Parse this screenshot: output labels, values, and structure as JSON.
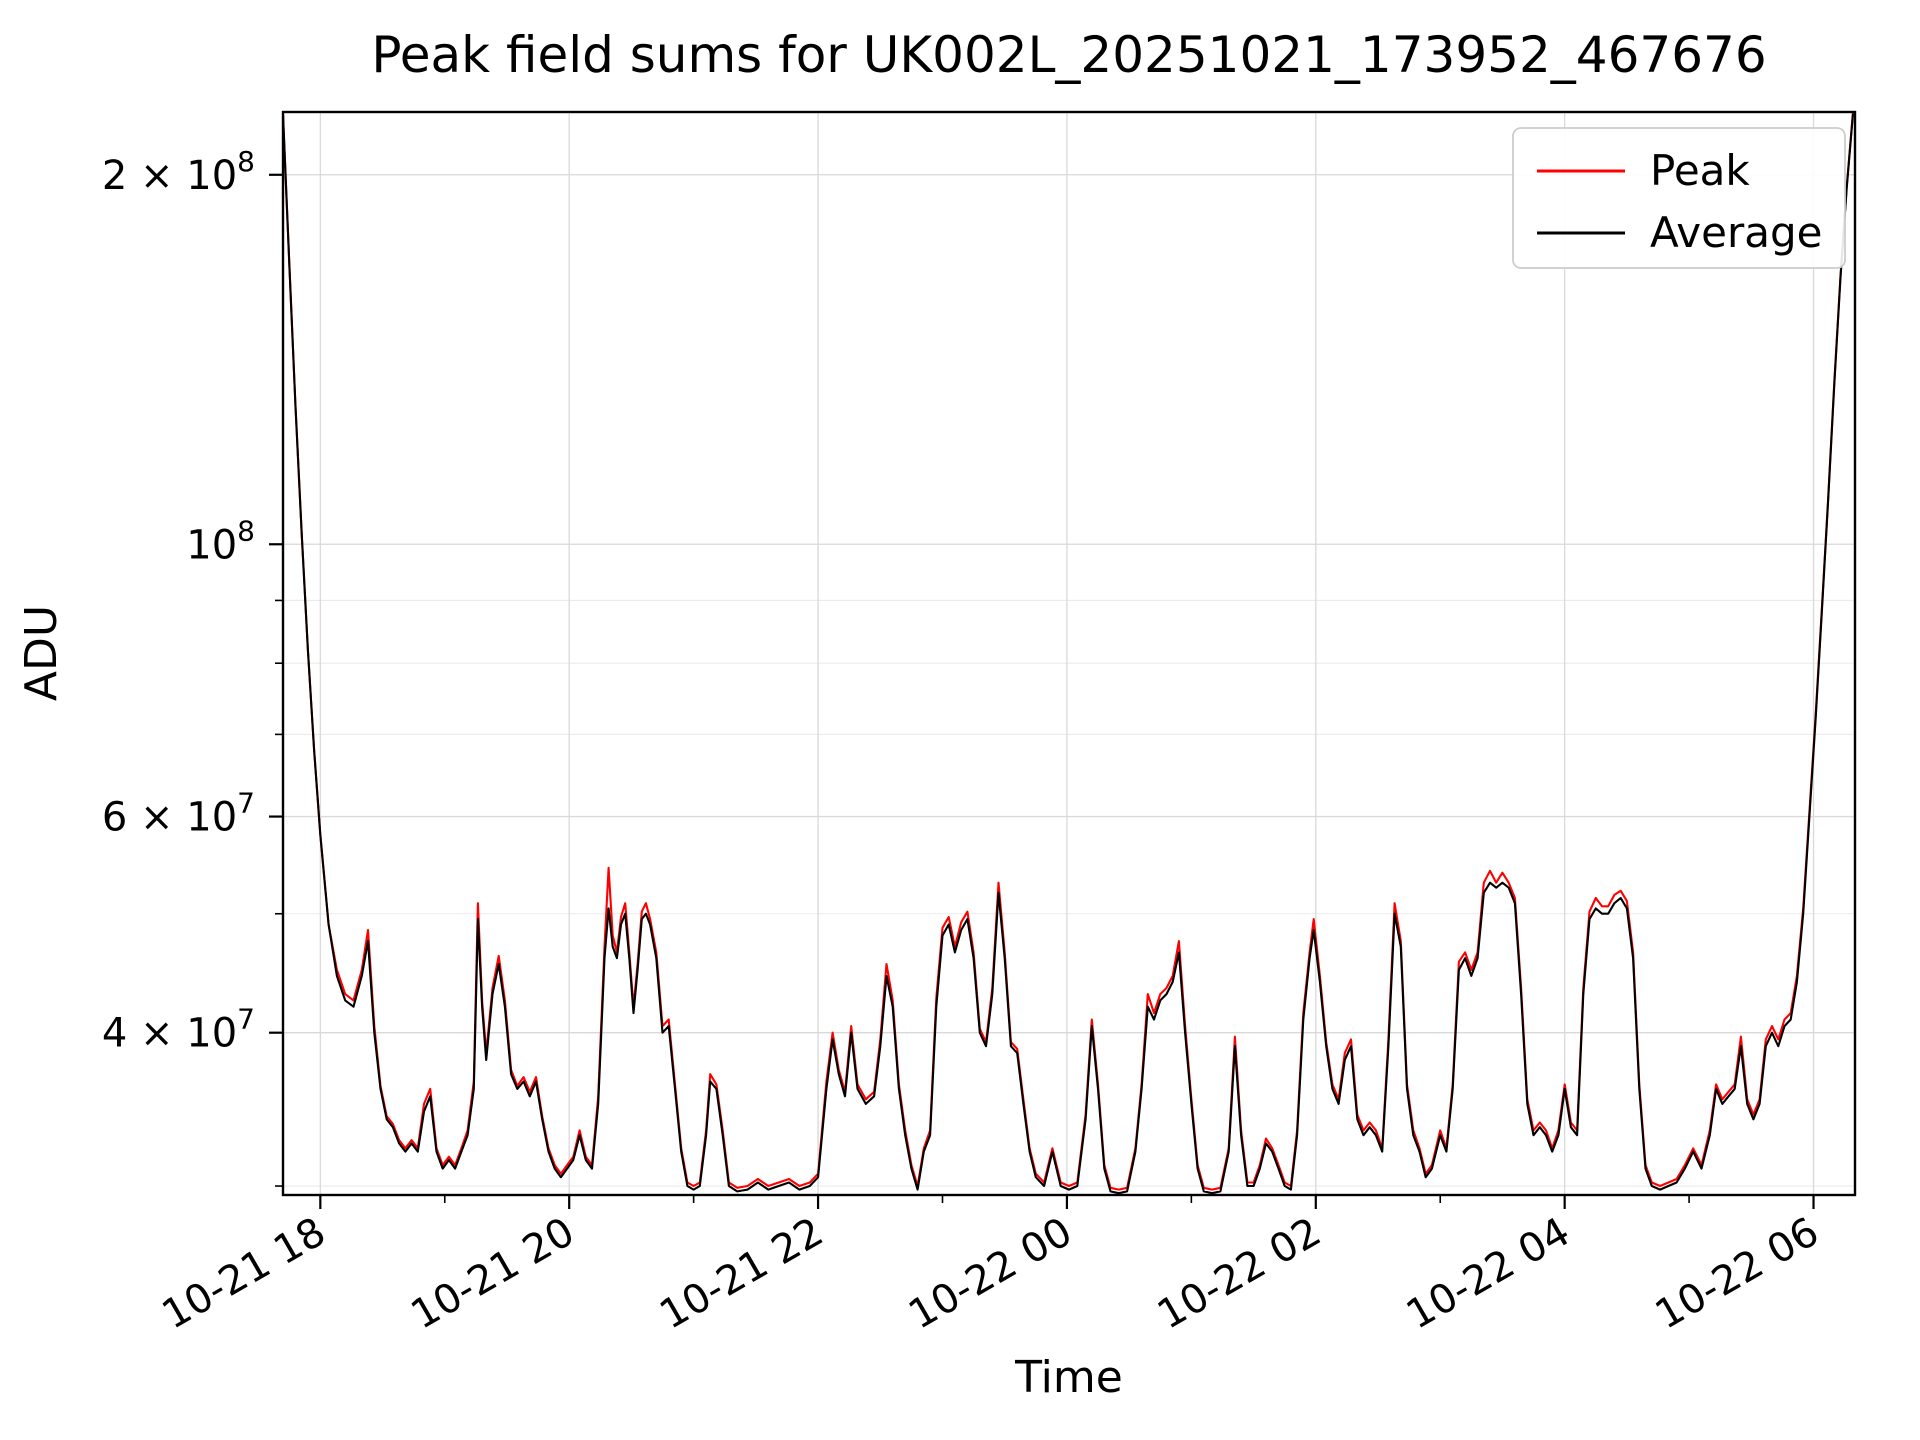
{
  "legend": {
    "items": [
      {
        "label": "Peak",
        "color": "#ff0000"
      },
      {
        "label": "Average",
        "color": "#000000"
      }
    ]
  },
  "chart_data": {
    "type": "line",
    "title": "Peak field sums for UK002L_20251021_173952_467676",
    "xlabel": "Time",
    "ylabel": "ADU",
    "y_scale": "log",
    "grid": true,
    "legend_position": "upper right",
    "value_unit": "ADU",
    "value_scale": 10000000,
    "ylim_scaled": [
      2.95,
      22.5
    ],
    "x_range_minutes": [
      2,
      760
    ],
    "x_ticks": [
      {
        "minute": 20,
        "label": "10-21 18"
      },
      {
        "minute": 140,
        "label": "10-21 20"
      },
      {
        "minute": 260,
        "label": "10-21 22"
      },
      {
        "minute": 380,
        "label": "10-22 00"
      },
      {
        "minute": 500,
        "label": "10-22 02"
      },
      {
        "minute": 620,
        "label": "10-22 04"
      },
      {
        "minute": 740,
        "label": "10-22 06"
      }
    ],
    "x_minor_minutes": [
      80,
      200,
      320,
      440,
      560,
      680
    ],
    "y_ticks_major": [
      {
        "value": 20,
        "mantissa": "2 × 10",
        "exponent": "8"
      },
      {
        "value": 10,
        "mantissa": "10",
        "exponent": "8"
      },
      {
        "value": 6,
        "mantissa": "6 × 10",
        "exponent": "7"
      },
      {
        "value": 4,
        "mantissa": "4 × 10",
        "exponent": "7"
      }
    ],
    "y_ticks_minor": [
      3,
      5,
      7,
      8,
      9
    ],
    "x_minutes": [
      2,
      5,
      8,
      11,
      14,
      17,
      20,
      24,
      28,
      32,
      36,
      40,
      43,
      46,
      49,
      52,
      55,
      58,
      61,
      64,
      67,
      70,
      73,
      76,
      79,
      82,
      85,
      88,
      91,
      94,
      96,
      98,
      100,
      103,
      106,
      109,
      112,
      115,
      118,
      121,
      124,
      127,
      130,
      133,
      136,
      139,
      142,
      145,
      148,
      151,
      154,
      157,
      159,
      161,
      163,
      165,
      167,
      169,
      171,
      173,
      175,
      177,
      179,
      182,
      185,
      188,
      191,
      194,
      197,
      200,
      203,
      206,
      208,
      211,
      214,
      217,
      221,
      226,
      231,
      236,
      241,
      246,
      251,
      256,
      260,
      264,
      267,
      270,
      273,
      276,
      279,
      283,
      287,
      290,
      293,
      296,
      299,
      302,
      305,
      308,
      311,
      314,
      317,
      320,
      323,
      326,
      329,
      332,
      335,
      338,
      341,
      344,
      347,
      350,
      353,
      356,
      359,
      362,
      365,
      369,
      373,
      377,
      381,
      385,
      389,
      392,
      395,
      398,
      401,
      405,
      409,
      413,
      416,
      419,
      422,
      425,
      428,
      431,
      434,
      437,
      440,
      443,
      446,
      450,
      454,
      458,
      461,
      464,
      467,
      470,
      473,
      476,
      479,
      482,
      485,
      488,
      491,
      494,
      497,
      499,
      502,
      505,
      508,
      511,
      514,
      517,
      520,
      523,
      526,
      529,
      532,
      535,
      538,
      541,
      544,
      547,
      550,
      553,
      556,
      560,
      563,
      566,
      569,
      572,
      575,
      578,
      581,
      584,
      587,
      590,
      593,
      596,
      599,
      602,
      605,
      608,
      611,
      614,
      617,
      620,
      623,
      626,
      629,
      632,
      635,
      638,
      641,
      644,
      647,
      650,
      653,
      656,
      659,
      662,
      666,
      670,
      674,
      678,
      682,
      686,
      690,
      693,
      696,
      699,
      702,
      705,
      708,
      711,
      714,
      717,
      720,
      723,
      726,
      729,
      732,
      735,
      738,
      741,
      744,
      747,
      750,
      753,
      756,
      759
    ],
    "series": [
      {
        "name": "Peak",
        "color": "#ff0000",
        "values": [
          22.4,
          17.0,
          13.0,
          10.2,
          8.2,
          6.8,
          5.8,
          4.9,
          4.5,
          4.3,
          4.25,
          4.5,
          4.85,
          4.05,
          3.62,
          3.42,
          3.37,
          3.27,
          3.22,
          3.27,
          3.22,
          3.5,
          3.6,
          3.22,
          3.12,
          3.17,
          3.12,
          3.22,
          3.33,
          3.65,
          5.1,
          4.25,
          3.85,
          4.35,
          4.62,
          4.25,
          3.73,
          3.62,
          3.68,
          3.58,
          3.68,
          3.42,
          3.22,
          3.12,
          3.07,
          3.12,
          3.17,
          3.33,
          3.17,
          3.12,
          3.55,
          4.7,
          5.45,
          4.8,
          4.65,
          4.97,
          5.1,
          4.65,
          4.2,
          4.55,
          5.02,
          5.1,
          4.95,
          4.65,
          4.05,
          4.1,
          3.63,
          3.22,
          3.02,
          3.0,
          3.02,
          3.33,
          3.7,
          3.63,
          3.33,
          3.02,
          2.99,
          3.0,
          3.04,
          3.0,
          3.02,
          3.04,
          3.0,
          3.02,
          3.07,
          3.65,
          4.0,
          3.73,
          3.58,
          4.05,
          3.63,
          3.53,
          3.58,
          3.95,
          4.55,
          4.25,
          3.63,
          3.33,
          3.12,
          3.0,
          3.22,
          3.33,
          4.27,
          4.87,
          4.97,
          4.7,
          4.92,
          5.02,
          4.65,
          4.03,
          3.93,
          4.35,
          5.3,
          4.65,
          3.93,
          3.88,
          3.53,
          3.22,
          3.07,
          3.02,
          3.22,
          3.02,
          3.0,
          3.02,
          3.43,
          4.1,
          3.63,
          3.12,
          2.99,
          2.98,
          2.99,
          3.22,
          3.63,
          4.3,
          4.15,
          4.3,
          4.35,
          4.45,
          4.75,
          4.05,
          3.53,
          3.12,
          2.99,
          2.98,
          2.99,
          3.22,
          3.97,
          3.33,
          3.02,
          3.02,
          3.12,
          3.28,
          3.22,
          3.12,
          3.02,
          3.0,
          3.33,
          4.15,
          4.65,
          4.95,
          4.45,
          3.93,
          3.63,
          3.53,
          3.85,
          3.95,
          3.43,
          3.33,
          3.38,
          3.33,
          3.22,
          3.95,
          5.1,
          4.75,
          3.63,
          3.33,
          3.22,
          3.07,
          3.12,
          3.33,
          3.22,
          3.63,
          4.57,
          4.65,
          4.5,
          4.65,
          5.3,
          5.42,
          5.3,
          5.4,
          5.3,
          5.15,
          4.35,
          3.53,
          3.33,
          3.38,
          3.33,
          3.22,
          3.33,
          3.63,
          3.38,
          3.33,
          4.35,
          5.02,
          5.15,
          5.07,
          5.07,
          5.18,
          5.22,
          5.12,
          4.65,
          3.63,
          3.12,
          3.02,
          3.0,
          3.02,
          3.04,
          3.12,
          3.22,
          3.12,
          3.33,
          3.63,
          3.53,
          3.58,
          3.63,
          3.97,
          3.53,
          3.43,
          3.53,
          3.95,
          4.05,
          3.95,
          4.1,
          4.15,
          4.45,
          5.05,
          6.05,
          7.25,
          8.85,
          10.85,
          13.55,
          16.55,
          19.55,
          22.45
        ]
      },
      {
        "name": "Average",
        "color": "#000000",
        "values": [
          22.4,
          17.0,
          13.0,
          10.2,
          8.2,
          6.8,
          5.8,
          4.9,
          4.45,
          4.25,
          4.2,
          4.45,
          4.75,
          4.0,
          3.6,
          3.4,
          3.35,
          3.25,
          3.2,
          3.25,
          3.2,
          3.45,
          3.55,
          3.2,
          3.1,
          3.15,
          3.1,
          3.2,
          3.3,
          3.6,
          4.95,
          4.2,
          3.8,
          4.3,
          4.55,
          4.2,
          3.7,
          3.6,
          3.65,
          3.55,
          3.65,
          3.4,
          3.2,
          3.1,
          3.05,
          3.1,
          3.15,
          3.3,
          3.15,
          3.1,
          3.5,
          4.6,
          5.05,
          4.7,
          4.6,
          4.9,
          5.0,
          4.6,
          4.15,
          4.5,
          4.95,
          5.0,
          4.9,
          4.6,
          4.0,
          4.05,
          3.6,
          3.2,
          3.0,
          2.98,
          3.0,
          3.3,
          3.65,
          3.6,
          3.3,
          3.0,
          2.97,
          2.98,
          3.02,
          2.98,
          3.0,
          3.02,
          2.98,
          3.0,
          3.05,
          3.6,
          3.95,
          3.7,
          3.55,
          4.0,
          3.6,
          3.5,
          3.55,
          3.9,
          4.45,
          4.2,
          3.6,
          3.3,
          3.1,
          2.98,
          3.2,
          3.3,
          4.2,
          4.8,
          4.9,
          4.65,
          4.85,
          4.95,
          4.6,
          4.0,
          3.9,
          4.3,
          5.2,
          4.6,
          3.9,
          3.85,
          3.5,
          3.2,
          3.05,
          3.0,
          3.2,
          3.0,
          2.98,
          3.0,
          3.4,
          4.05,
          3.6,
          3.1,
          2.97,
          2.96,
          2.97,
          3.2,
          3.6,
          4.2,
          4.1,
          4.25,
          4.3,
          4.4,
          4.65,
          4.0,
          3.5,
          3.1,
          2.97,
          2.96,
          2.97,
          3.2,
          3.9,
          3.3,
          3.0,
          3.0,
          3.1,
          3.25,
          3.2,
          3.1,
          3.0,
          2.98,
          3.3,
          4.1,
          4.6,
          4.85,
          4.4,
          3.9,
          3.6,
          3.5,
          3.8,
          3.9,
          3.4,
          3.3,
          3.35,
          3.3,
          3.2,
          3.9,
          5.0,
          4.7,
          3.6,
          3.3,
          3.2,
          3.05,
          3.1,
          3.3,
          3.2,
          3.6,
          4.5,
          4.6,
          4.45,
          4.6,
          5.2,
          5.3,
          5.25,
          5.3,
          5.25,
          5.1,
          4.3,
          3.5,
          3.3,
          3.35,
          3.3,
          3.2,
          3.3,
          3.6,
          3.35,
          3.3,
          4.3,
          4.95,
          5.05,
          5.0,
          5.0,
          5.1,
          5.15,
          5.05,
          4.6,
          3.6,
          3.1,
          3.0,
          2.98,
          3.0,
          3.02,
          3.1,
          3.2,
          3.1,
          3.3,
          3.6,
          3.5,
          3.55,
          3.6,
          3.9,
          3.5,
          3.4,
          3.5,
          3.9,
          4.0,
          3.9,
          4.05,
          4.1,
          4.4,
          5.0,
          6.0,
          7.2,
          8.8,
          10.8,
          13.5,
          16.5,
          19.5,
          22.4
        ]
      }
    ]
  }
}
